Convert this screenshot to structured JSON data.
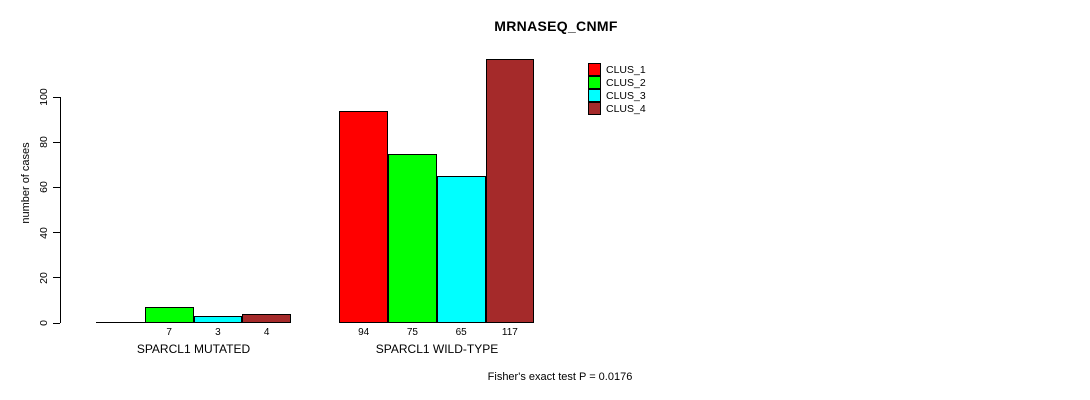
{
  "chart_data": {
    "type": "bar",
    "title": "MRNASEQ_CNMF",
    "xlabel": "",
    "ylabel": "number of cases",
    "categories": [
      "SPARCL1 MUTATED",
      "SPARCL1 WILD-TYPE"
    ],
    "series": [
      {
        "name": "CLUS_1",
        "color": "#FF0000",
        "values": [
          0,
          94
        ]
      },
      {
        "name": "CLUS_2",
        "color": "#00FF00",
        "values": [
          7,
          75
        ]
      },
      {
        "name": "CLUS_3",
        "color": "#00FFFF",
        "values": [
          3,
          65
        ]
      },
      {
        "name": "CLUS_4",
        "color": "#A52A2A",
        "values": [
          4,
          117
        ]
      }
    ],
    "bar_value_labels": [
      [
        "",
        "7",
        "3",
        "4"
      ],
      [
        "94",
        "75",
        "65",
        "117"
      ]
    ],
    "ylim": [
      0,
      100
    ],
    "yticks": [
      0,
      20,
      40,
      60,
      80,
      100
    ],
    "grid": false,
    "legend_position": "top-right-inside",
    "annotation": "Fisher's exact test P = 0.0176"
  }
}
